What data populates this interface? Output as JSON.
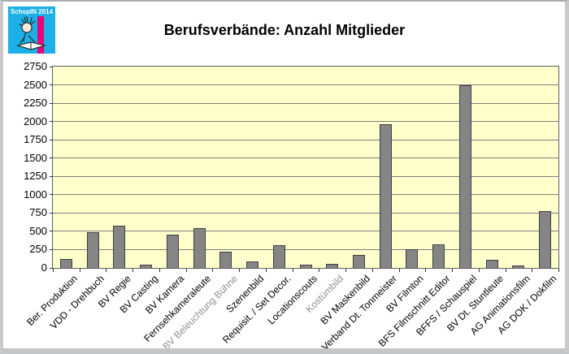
{
  "logo": {
    "text": "SchspIN 2014",
    "bg_color": "#1cb0e6",
    "stripe_color": "#e8007d"
  },
  "chart_data": {
    "type": "bar",
    "title": "Berufsverbände: Anzahl Mitglieder",
    "categories": [
      "Ber. Produktion",
      "VDD - Drehbuch",
      "BV Regie",
      "BV Casting",
      "BV Kamera",
      "Fernsehkameraleute",
      "BV Beleuchtung Bühne",
      "Szenenbild",
      "Requisit. / Set Decor.",
      "Locationscouts",
      "Kostümbild",
      "BV Maskenbild",
      "Verband Dt. Tonmeister",
      "BV Filmton",
      "BFS Filmschnitt Editor",
      "BFFS / Schauspiel",
      "BV Dt. Stuntleute",
      "AG Animationsfilm",
      "AG DOK / Dokfilm"
    ],
    "values": [
      120,
      490,
      575,
      50,
      455,
      545,
      225,
      90,
      310,
      45,
      60,
      180,
      1960,
      250,
      325,
      2500,
      110,
      30,
      780
    ],
    "muted_indices": [
      6,
      10
    ],
    "xlabel": "",
    "ylabel": "",
    "ylim": [
      0,
      2750
    ],
    "yticks": [
      0,
      250,
      500,
      750,
      1000,
      1250,
      1500,
      1750,
      2000,
      2250,
      2500,
      2750
    ],
    "grid": true,
    "legend": "none",
    "plot_bg": "#ffffcc",
    "bar_color": "#858585",
    "bar_border_color": "#3f3f3f",
    "gridline_color": "#808080",
    "axis_color": "#333333",
    "label_color": "#000000",
    "muted_label_color": "#909090"
  }
}
